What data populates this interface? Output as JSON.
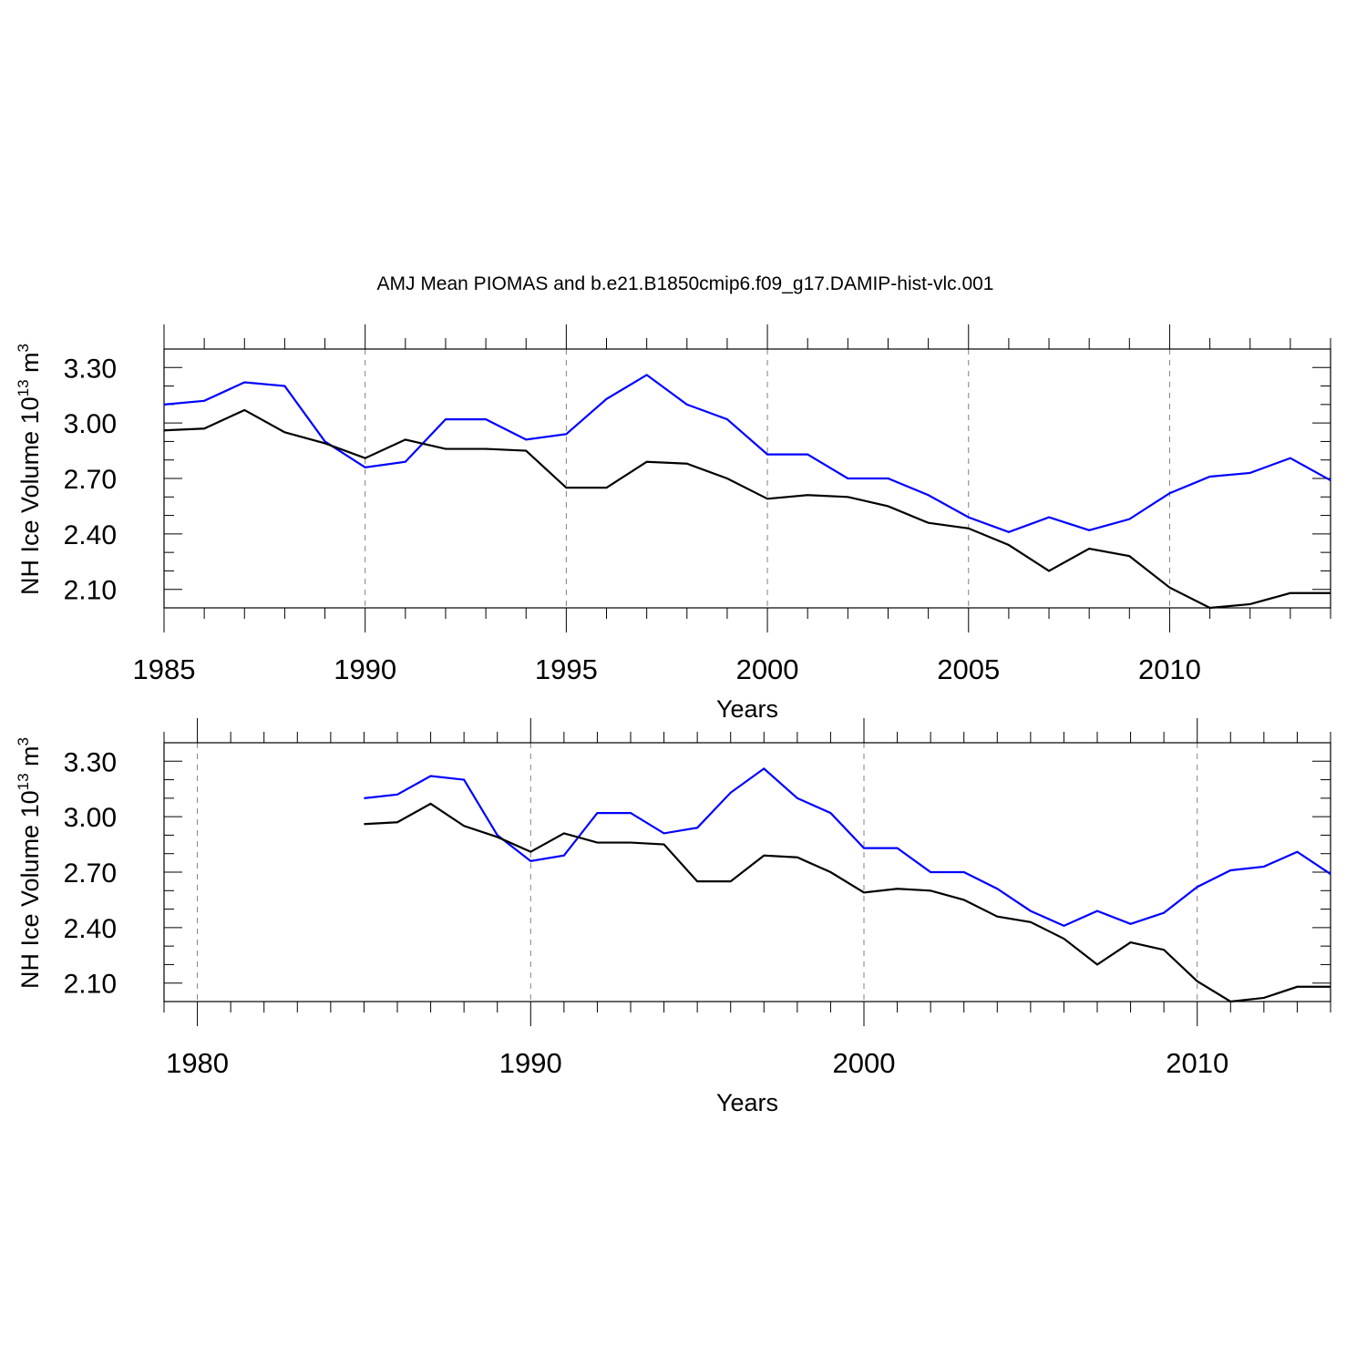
{
  "chart_data": {
    "title": "AMJ Mean PIOMAS and b.e21.B1850cmip6.f09_g17.DAMIP-hist-vlc.001",
    "colors": {
      "series_1": "#0000ff",
      "series_2": "#000000",
      "grid": "#808080",
      "axis": "#000000"
    },
    "panels": [
      {
        "type": "line",
        "xlabel": "Years",
        "ylabel": {
          "text": "NH Ice Volume 10",
          "superscript": "13",
          "unit": " m",
          "unit_superscript": "3"
        },
        "xlim": [
          1985,
          2014
        ],
        "ylim": [
          2.0,
          3.4
        ],
        "x_ticks": [
          1985,
          1990,
          1995,
          2000,
          2005,
          2010
        ],
        "x_tick_labels": [
          "1985",
          "1990",
          "1995",
          "2000",
          "2005",
          "2010"
        ],
        "y_ticks": [
          2.1,
          2.4,
          2.7,
          3.0,
          3.3
        ],
        "y_tick_labels": [
          "2.10",
          "2.40",
          "2.70",
          "3.00",
          "3.30"
        ],
        "vertical_grid": "dashed at labeled x ticks",
        "x": [
          1985,
          1986,
          1987,
          1988,
          1989,
          1990,
          1991,
          1992,
          1993,
          1994,
          1995,
          1996,
          1997,
          1998,
          1999,
          2000,
          2001,
          2002,
          2003,
          2004,
          2005,
          2006,
          2007,
          2008,
          2009,
          2010,
          2011,
          2012,
          2013,
          2014
        ],
        "series": [
          {
            "color": "#0000ff",
            "values": [
              3.1,
              3.12,
              3.22,
              3.2,
              2.9,
              2.76,
              2.79,
              3.02,
              3.02,
              2.91,
              2.94,
              3.13,
              3.26,
              3.1,
              3.02,
              2.83,
              2.83,
              2.7,
              2.7,
              2.61,
              2.49,
              2.41,
              2.49,
              2.42,
              2.48,
              2.62,
              2.71,
              2.73,
              2.81,
              2.69
            ]
          },
          {
            "color": "#000000",
            "values": [
              2.96,
              2.97,
              3.07,
              2.95,
              2.89,
              2.81,
              2.91,
              2.86,
              2.86,
              2.85,
              2.65,
              2.65,
              2.79,
              2.78,
              2.7,
              2.59,
              2.61,
              2.6,
              2.55,
              2.46,
              2.43,
              2.34,
              2.2,
              2.32,
              2.28,
              2.11,
              2.0,
              2.02,
              2.08,
              2.08
            ]
          }
        ]
      },
      {
        "type": "line",
        "xlabel": "Years",
        "ylabel": {
          "text": "NH Ice Volume 10",
          "superscript": "13",
          "unit": " m",
          "unit_superscript": "3"
        },
        "xlim": [
          1979,
          2014
        ],
        "ylim": [
          2.0,
          3.4
        ],
        "x_ticks": [
          1980,
          1990,
          2000,
          2010
        ],
        "x_tick_labels": [
          "1980",
          "1990",
          "2000",
          "2010"
        ],
        "y_ticks": [
          2.1,
          2.4,
          2.7,
          3.0,
          3.3
        ],
        "y_tick_labels": [
          "2.10",
          "2.40",
          "2.70",
          "3.00",
          "3.30"
        ],
        "vertical_grid": "dashed at labeled x ticks",
        "x": [
          1985,
          1986,
          1987,
          1988,
          1989,
          1990,
          1991,
          1992,
          1993,
          1994,
          1995,
          1996,
          1997,
          1998,
          1999,
          2000,
          2001,
          2002,
          2003,
          2004,
          2005,
          2006,
          2007,
          2008,
          2009,
          2010,
          2011,
          2012,
          2013,
          2014
        ],
        "series": [
          {
            "color": "#0000ff",
            "values": [
              3.1,
              3.12,
              3.22,
              3.2,
              2.9,
              2.76,
              2.79,
              3.02,
              3.02,
              2.91,
              2.94,
              3.13,
              3.26,
              3.1,
              3.02,
              2.83,
              2.83,
              2.7,
              2.7,
              2.61,
              2.49,
              2.41,
              2.49,
              2.42,
              2.48,
              2.62,
              2.71,
              2.73,
              2.81,
              2.69
            ]
          },
          {
            "color": "#000000",
            "values": [
              2.96,
              2.97,
              3.07,
              2.95,
              2.89,
              2.81,
              2.91,
              2.86,
              2.86,
              2.85,
              2.65,
              2.65,
              2.79,
              2.78,
              2.7,
              2.59,
              2.61,
              2.6,
              2.55,
              2.46,
              2.43,
              2.34,
              2.2,
              2.32,
              2.28,
              2.11,
              2.0,
              2.02,
              2.08,
              2.08
            ]
          }
        ]
      }
    ]
  }
}
